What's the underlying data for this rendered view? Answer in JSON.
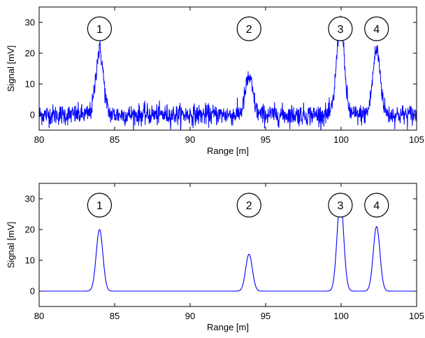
{
  "chart_data": [
    {
      "type": "line",
      "title": "",
      "xlabel": "Range [m]",
      "ylabel": "Signal [mV]",
      "xlim": [
        80,
        105
      ],
      "ylim": [
        -5,
        35
      ],
      "xticks": [
        80,
        85,
        90,
        95,
        100,
        105
      ],
      "yticks": [
        0,
        10,
        20,
        30
      ],
      "grid": false,
      "line_color": "#0000ff",
      "noisy": true,
      "noise_amplitude_mV": 3,
      "peaks": [
        {
          "label": "1",
          "x": 84.0,
          "amplitude": 21,
          "width": 0.25
        },
        {
          "label": "2",
          "x": 93.9,
          "amplitude": 12,
          "width": 0.25
        },
        {
          "label": "3",
          "x": 99.95,
          "amplitude": 30,
          "width": 0.25
        },
        {
          "label": "4",
          "x": 102.35,
          "amplitude": 21,
          "width": 0.25
        }
      ]
    },
    {
      "type": "line",
      "title": "",
      "xlabel": "Range [m]",
      "ylabel": "Signal [mV]",
      "xlim": [
        80,
        105
      ],
      "ylim": [
        -5,
        35
      ],
      "xticks": [
        80,
        85,
        90,
        95,
        100,
        105
      ],
      "yticks": [
        0,
        10,
        20,
        30
      ],
      "grid": false,
      "line_color": "#0000ff",
      "noisy": false,
      "peaks": [
        {
          "label": "1",
          "x": 84.0,
          "amplitude": 20,
          "width": 0.22
        },
        {
          "label": "2",
          "x": 93.9,
          "amplitude": 12,
          "width": 0.22
        },
        {
          "label": "3",
          "x": 99.95,
          "amplitude": 30,
          "width": 0.22
        },
        {
          "label": "4",
          "x": 102.35,
          "amplitude": 21,
          "width": 0.22
        }
      ]
    }
  ]
}
